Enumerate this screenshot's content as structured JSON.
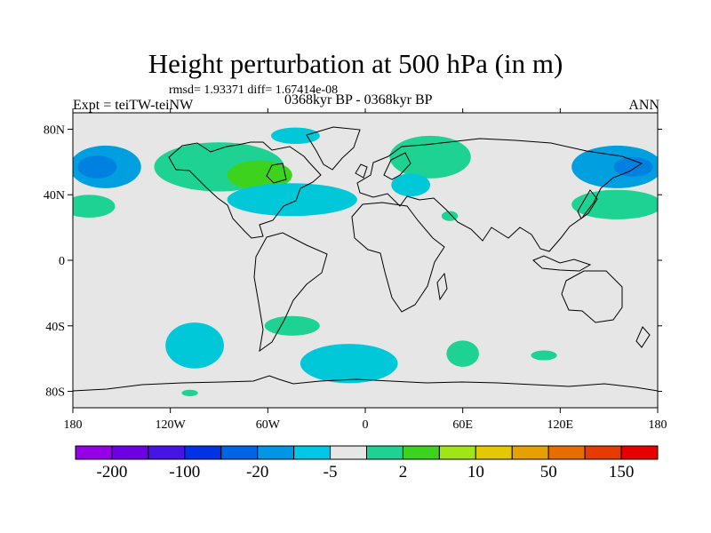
{
  "header": {
    "title": "Height perturbation at 500 hPa (in m)",
    "stats": "rmsd= 1.93371 diff= 1.67414e-08",
    "expt": "Expt = teiTW-teiNW",
    "period": "0368kyr BP - 0368kyr BP",
    "season": "ANN"
  },
  "map": {
    "background_color": "#e6e6e6",
    "lon_range": [
      -180,
      180
    ],
    "lat_range": [
      -90,
      90
    ],
    "lon_ticks": [
      {
        "value": -180,
        "label": "180"
      },
      {
        "value": -120,
        "label": "120W"
      },
      {
        "value": -60,
        "label": "60W"
      },
      {
        "value": 0,
        "label": "0"
      },
      {
        "value": 60,
        "label": "60E"
      },
      {
        "value": 120,
        "label": "120E"
      },
      {
        "value": 180,
        "label": "180"
      }
    ],
    "lat_ticks": [
      {
        "value": 80,
        "label": "80N"
      },
      {
        "value": 40,
        "label": "40N"
      },
      {
        "value": 0,
        "label": "0"
      },
      {
        "value": -40,
        "label": "40S"
      },
      {
        "value": -80,
        "label": "80S"
      }
    ],
    "anomaly_regions": [
      {
        "name": "north-pacific-east-negative",
        "lon": -160,
        "lat": 57,
        "rlon": 22,
        "rlat": 13,
        "color": "#00a0e0"
      },
      {
        "name": "north-pacific-east-core",
        "lon": -165,
        "lat": 57,
        "rlon": 12,
        "rlat": 7,
        "color": "#0080e0"
      },
      {
        "name": "north-pacific-positive",
        "lon": -170,
        "lat": 33,
        "rlon": 16,
        "rlat": 7,
        "color": "#1ed294"
      },
      {
        "name": "canada-positive",
        "lon": -90,
        "lat": 57,
        "rlon": 40,
        "rlat": 15,
        "color": "#1ed294"
      },
      {
        "name": "canada-positive-core",
        "lon": -65,
        "lat": 52,
        "rlon": 20,
        "rlat": 9,
        "color": "#3cd21e"
      },
      {
        "name": "greenland-negative",
        "lon": -43,
        "lat": 76,
        "rlon": 15,
        "rlat": 5,
        "color": "#00c8d8"
      },
      {
        "name": "north-atlantic-negative",
        "lon": -45,
        "lat": 37,
        "rlon": 40,
        "rlat": 10,
        "color": "#00c8d8"
      },
      {
        "name": "siberia-positive",
        "lon": 40,
        "lat": 63,
        "rlon": 25,
        "rlat": 13,
        "color": "#1ed294"
      },
      {
        "name": "europe-negative",
        "lon": 28,
        "lat": 46,
        "rlon": 12,
        "rlat": 7,
        "color": "#00c8d8"
      },
      {
        "name": "middle-east-positive",
        "lon": 52,
        "lat": 27,
        "rlon": 5,
        "rlat": 3,
        "color": "#1ed294"
      },
      {
        "name": "east-asia-negative",
        "lon": 155,
        "lat": 57,
        "rlon": 28,
        "rlat": 13,
        "color": "#00a0e0"
      },
      {
        "name": "east-asia-negative-core",
        "lon": 165,
        "lat": 57,
        "rlon": 12,
        "rlat": 6,
        "color": "#0080e0"
      },
      {
        "name": "northwest-pacific-positive",
        "lon": 155,
        "lat": 34,
        "rlon": 28,
        "rlat": 9,
        "color": "#1ed294"
      },
      {
        "name": "south-pacific-negative",
        "lon": -105,
        "lat": -52,
        "rlon": 18,
        "rlat": 14,
        "color": "#00c8d8"
      },
      {
        "name": "south-atlantic-positive",
        "lon": -45,
        "lat": -40,
        "rlon": 17,
        "rlat": 6,
        "color": "#1ed294"
      },
      {
        "name": "south-atlantic-negative",
        "lon": -10,
        "lat": -63,
        "rlon": 30,
        "rlat": 12,
        "color": "#00c8d8"
      },
      {
        "name": "southern-indian-positive",
        "lon": 60,
        "lat": -57,
        "rlon": 10,
        "rlat": 8,
        "color": "#1ed294"
      },
      {
        "name": "southeast-indian-positive",
        "lon": 110,
        "lat": -58,
        "rlon": 8,
        "rlat": 3,
        "color": "#1ed294"
      },
      {
        "name": "antarctic-positive",
        "lon": -108,
        "lat": -81,
        "rlon": 5,
        "rlat": 2,
        "color": "#1ed294"
      }
    ]
  },
  "colorbar": {
    "colors": [
      "#9600e6",
      "#6e00e6",
      "#4614e6",
      "#0032e6",
      "#0064e6",
      "#0096e6",
      "#00c8e6",
      "#e6e6e6",
      "#1ed294",
      "#3cd21e",
      "#a0e614",
      "#e6c800",
      "#e6a000",
      "#e66e00",
      "#e63c00",
      "#e60000"
    ],
    "labels": [
      {
        "boundary": 1,
        "text": "-200"
      },
      {
        "boundary": 3,
        "text": "-100"
      },
      {
        "boundary": 5,
        "text": "-20"
      },
      {
        "boundary": 7,
        "text": "-5"
      },
      {
        "boundary": 9,
        "text": "2"
      },
      {
        "boundary": 11,
        "text": "10"
      },
      {
        "boundary": 13,
        "text": "50"
      },
      {
        "boundary": 15,
        "text": "150"
      }
    ]
  }
}
